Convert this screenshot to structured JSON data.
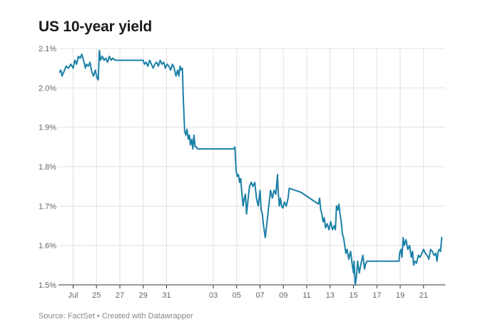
{
  "title": "US 10-year yield",
  "footer": {
    "source": "Source: FactSet",
    "separator": " • ",
    "credit": "Created with Datawrapper"
  },
  "colors": {
    "line": "#1b80a7",
    "grid": "#e1e1e1",
    "axis": "#333333"
  },
  "chart_data": {
    "type": "line",
    "title": "US 10-year yield",
    "xlabel": "",
    "ylabel": "",
    "ylim": [
      1.5,
      2.1
    ],
    "grid": true,
    "y_ticks": [
      {
        "value": 2.1,
        "label": "2.1%"
      },
      {
        "value": 2.0,
        "label": "2.0%"
      },
      {
        "value": 1.9,
        "label": "1.9%"
      },
      {
        "value": 1.8,
        "label": "1.8%"
      },
      {
        "value": 1.7,
        "label": "1.7%"
      },
      {
        "value": 1.6,
        "label": "1.6%"
      },
      {
        "value": 1.5,
        "label": "1.5%"
      }
    ],
    "x_ticks": [
      {
        "day": 23,
        "label": "Jul"
      },
      {
        "day": 25,
        "label": "25"
      },
      {
        "day": 27,
        "label": "27"
      },
      {
        "day": 29,
        "label": "29"
      },
      {
        "day": 31,
        "label": "31"
      },
      {
        "day": 35,
        "label": "03"
      },
      {
        "day": 37,
        "label": "05"
      },
      {
        "day": 39,
        "label": "07"
      },
      {
        "day": 41,
        "label": "09"
      },
      {
        "day": 43,
        "label": "11"
      },
      {
        "day": 45,
        "label": "13"
      },
      {
        "day": 47,
        "label": "15"
      },
      {
        "day": 49,
        "label": "17"
      },
      {
        "day": 51,
        "label": "19"
      },
      {
        "day": 53,
        "label": "21"
      }
    ],
    "xlim": [
      21.75,
      54.85
    ],
    "series": [
      {
        "points": [
          [
            21.85,
            2.04
          ],
          [
            21.95,
            2.045
          ],
          [
            22.05,
            2.03
          ],
          [
            22.2,
            2.04
          ],
          [
            22.4,
            2.055
          ],
          [
            22.6,
            2.05
          ],
          [
            22.8,
            2.06
          ],
          [
            23.0,
            2.05
          ],
          [
            23.15,
            2.07
          ],
          [
            23.3,
            2.06
          ],
          [
            23.45,
            2.08
          ],
          [
            23.6,
            2.075
          ],
          [
            23.75,
            2.085
          ],
          [
            23.9,
            2.07
          ],
          [
            24.05,
            2.05
          ],
          [
            24.15,
            2.06
          ],
          [
            24.3,
            2.055
          ],
          [
            24.45,
            2.065
          ],
          [
            24.6,
            2.04
          ],
          [
            24.75,
            2.03
          ],
          [
            24.9,
            2.045
          ],
          [
            25.05,
            2.025
          ],
          [
            25.15,
            2.02
          ],
          [
            25.25,
            2.095
          ],
          [
            25.35,
            2.07
          ],
          [
            25.5,
            2.08
          ],
          [
            25.65,
            2.07
          ],
          [
            25.8,
            2.075
          ],
          [
            25.95,
            2.065
          ],
          [
            26.1,
            2.08
          ],
          [
            26.25,
            2.07
          ],
          [
            26.4,
            2.075
          ],
          [
            26.6,
            2.07
          ],
          [
            29.0,
            2.07
          ],
          [
            29.1,
            2.06
          ],
          [
            29.25,
            2.065
          ],
          [
            29.4,
            2.055
          ],
          [
            29.55,
            2.07
          ],
          [
            29.7,
            2.06
          ],
          [
            29.85,
            2.05
          ],
          [
            30.0,
            2.06
          ],
          [
            30.15,
            2.065
          ],
          [
            30.3,
            2.055
          ],
          [
            30.45,
            2.07
          ],
          [
            30.6,
            2.06
          ],
          [
            30.75,
            2.065
          ],
          [
            30.9,
            2.05
          ],
          [
            31.05,
            2.06
          ],
          [
            31.2,
            2.055
          ],
          [
            31.35,
            2.045
          ],
          [
            31.5,
            2.06
          ],
          [
            31.65,
            2.05
          ],
          [
            31.8,
            2.03
          ],
          [
            31.95,
            2.045
          ],
          [
            32.05,
            2.03
          ],
          [
            32.15,
            2.055
          ],
          [
            32.25,
            2.045
          ],
          [
            32.35,
            2.05
          ],
          [
            32.45,
            1.96
          ],
          [
            32.55,
            1.89
          ],
          [
            32.65,
            1.88
          ],
          [
            32.75,
            1.895
          ],
          [
            32.85,
            1.87
          ],
          [
            32.95,
            1.88
          ],
          [
            33.05,
            1.855
          ],
          [
            33.15,
            1.87
          ],
          [
            33.25,
            1.845
          ],
          [
            33.35,
            1.88
          ],
          [
            33.45,
            1.85
          ],
          [
            33.55,
            1.85
          ],
          [
            33.65,
            1.845
          ],
          [
            36.75,
            1.845
          ],
          [
            36.85,
            1.85
          ],
          [
            36.95,
            1.79
          ],
          [
            37.05,
            1.775
          ],
          [
            37.15,
            1.78
          ],
          [
            37.25,
            1.76
          ],
          [
            37.35,
            1.77
          ],
          [
            37.45,
            1.73
          ],
          [
            37.55,
            1.7
          ],
          [
            37.65,
            1.72
          ],
          [
            37.75,
            1.73
          ],
          [
            37.85,
            1.68
          ],
          [
            37.95,
            1.71
          ],
          [
            38.1,
            1.75
          ],
          [
            38.25,
            1.76
          ],
          [
            38.4,
            1.75
          ],
          [
            38.55,
            1.76
          ],
          [
            38.7,
            1.72
          ],
          [
            38.85,
            1.7
          ],
          [
            39.0,
            1.74
          ],
          [
            39.1,
            1.69
          ],
          [
            39.2,
            1.68
          ],
          [
            39.3,
            1.65
          ],
          [
            39.45,
            1.62
          ],
          [
            39.6,
            1.66
          ],
          [
            39.75,
            1.7
          ],
          [
            39.9,
            1.74
          ],
          [
            40.05,
            1.72
          ],
          [
            40.2,
            1.74
          ],
          [
            40.35,
            1.73
          ],
          [
            40.5,
            1.78
          ],
          [
            40.55,
            1.74
          ],
          [
            40.65,
            1.7
          ],
          [
            40.75,
            1.72
          ],
          [
            40.85,
            1.7
          ],
          [
            40.95,
            1.695
          ],
          [
            41.1,
            1.71
          ],
          [
            41.25,
            1.7
          ],
          [
            41.4,
            1.72
          ],
          [
            41.5,
            1.745
          ],
          [
            42.0,
            1.74
          ],
          [
            42.5,
            1.735
          ],
          [
            43.0,
            1.725
          ],
          [
            43.5,
            1.715
          ],
          [
            44.0,
            1.705
          ],
          [
            44.1,
            1.72
          ],
          [
            44.2,
            1.69
          ],
          [
            44.3,
            1.68
          ],
          [
            44.4,
            1.66
          ],
          [
            44.5,
            1.67
          ],
          [
            44.6,
            1.645
          ],
          [
            44.75,
            1.655
          ],
          [
            44.9,
            1.64
          ],
          [
            45.05,
            1.66
          ],
          [
            45.2,
            1.64
          ],
          [
            45.35,
            1.65
          ],
          [
            45.45,
            1.64
          ],
          [
            45.55,
            1.7
          ],
          [
            45.65,
            1.69
          ],
          [
            45.75,
            1.705
          ],
          [
            45.85,
            1.68
          ],
          [
            45.95,
            1.66
          ],
          [
            46.05,
            1.63
          ],
          [
            46.15,
            1.62
          ],
          [
            46.25,
            1.6
          ],
          [
            46.35,
            1.58
          ],
          [
            46.45,
            1.59
          ],
          [
            46.6,
            1.565
          ],
          [
            46.75,
            1.585
          ],
          [
            46.9,
            1.55
          ],
          [
            47.0,
            1.53
          ],
          [
            47.05,
            1.56
          ],
          [
            47.15,
            1.5
          ],
          [
            47.25,
            1.52
          ],
          [
            47.35,
            1.56
          ],
          [
            47.5,
            1.53
          ],
          [
            47.65,
            1.555
          ],
          [
            47.8,
            1.575
          ],
          [
            47.95,
            1.54
          ],
          [
            48.05,
            1.555
          ],
          [
            48.15,
            1.56
          ],
          [
            50.9,
            1.56
          ],
          [
            50.95,
            1.58
          ],
          [
            51.05,
            1.59
          ],
          [
            51.15,
            1.57
          ],
          [
            51.25,
            1.62
          ],
          [
            51.35,
            1.6
          ],
          [
            51.5,
            1.615
          ],
          [
            51.65,
            1.59
          ],
          [
            51.8,
            1.6
          ],
          [
            51.95,
            1.57
          ],
          [
            52.05,
            1.585
          ],
          [
            52.15,
            1.55
          ],
          [
            52.25,
            1.56
          ],
          [
            52.4,
            1.555
          ],
          [
            52.55,
            1.575
          ],
          [
            52.7,
            1.57
          ],
          [
            52.85,
            1.58
          ],
          [
            53.0,
            1.59
          ],
          [
            53.15,
            1.58
          ],
          [
            53.3,
            1.575
          ],
          [
            53.45,
            1.565
          ],
          [
            53.6,
            1.59
          ],
          [
            53.75,
            1.585
          ],
          [
            53.9,
            1.575
          ],
          [
            54.05,
            1.58
          ],
          [
            54.15,
            1.56
          ],
          [
            54.25,
            1.585
          ],
          [
            54.35,
            1.59
          ],
          [
            54.45,
            1.585
          ],
          [
            54.55,
            1.62
          ]
        ]
      }
    ]
  }
}
